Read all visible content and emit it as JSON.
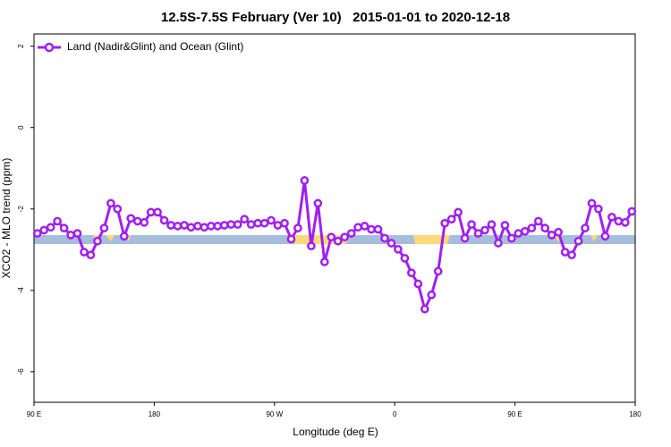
{
  "chart_data": {
    "type": "line",
    "title": "12.5S-7.5S February (Ver 10)   2015-01-01 to 2020-12-18",
    "x_label": "Longitude (deg E)",
    "y_label": "XCO2 - MLO trend (ppm)",
    "xlim": [
      90,
      540
    ],
    "ylim": [
      -6.75,
      2.3
    ],
    "xticks": [
      {
        "value": 90,
        "label": "90 E"
      },
      {
        "value": 180,
        "label": "180"
      },
      {
        "value": 270,
        "label": "90 W"
      },
      {
        "value": 360,
        "label": "0"
      },
      {
        "value": 450,
        "label": "90 E"
      },
      {
        "value": 540,
        "label": "180"
      }
    ],
    "yticks": [
      2,
      0,
      -2,
      -4,
      -6
    ],
    "legend_position": "top-left",
    "x": [
      92.5,
      97.5,
      102.5,
      107.5,
      112.5,
      117.5,
      122.5,
      127.5,
      132.5,
      137.5,
      142.5,
      147.5,
      152.5,
      157.5,
      162.5,
      167.5,
      172.5,
      177.5,
      182.5,
      187.5,
      192.5,
      197.5,
      202.5,
      207.5,
      212.5,
      217.5,
      222.5,
      227.5,
      232.5,
      237.5,
      242.5,
      247.5,
      252.5,
      257.5,
      262.5,
      267.5,
      272.5,
      277.5,
      282.5,
      287.5,
      292.5,
      297.5,
      302.5,
      307.5,
      312.5,
      317.5,
      322.5,
      327.5,
      332.5,
      337.5,
      342.5,
      347.5,
      352.5,
      357.5,
      362.5,
      367.5,
      372.5,
      377.5,
      382.5,
      387.5,
      392.5,
      397.5,
      402.5,
      407.5,
      412.5,
      417.5,
      422.5,
      427.5,
      432.5,
      437.5,
      442.5,
      447.5,
      452.5,
      457.5,
      462.5,
      467.5,
      472.5,
      477.5,
      482.5,
      487.5,
      492.5,
      497.5,
      502.5,
      507.5,
      512.5,
      517.5,
      522.5,
      527.5,
      532.5,
      537.5
    ],
    "series": [
      {
        "name": "Land (Nadir&Glint) and Ocean (Glint)",
        "color": "#a020f0",
        "values": [
          -2.6,
          -2.52,
          -2.45,
          -2.3,
          -2.47,
          -2.64,
          -2.6,
          -3.06,
          -3.13,
          -2.79,
          -2.47,
          -1.86,
          -2.0,
          -2.67,
          -2.23,
          -2.3,
          -2.33,
          -2.08,
          -2.08,
          -2.28,
          -2.4,
          -2.42,
          -2.4,
          -2.45,
          -2.42,
          -2.45,
          -2.42,
          -2.42,
          -2.4,
          -2.38,
          -2.38,
          -2.25,
          -2.38,
          -2.35,
          -2.35,
          -2.28,
          -2.4,
          -2.35,
          -2.74,
          -2.47,
          -1.3,
          -2.91,
          -1.86,
          -3.3,
          -2.69,
          -2.79,
          -2.69,
          -2.6,
          -2.45,
          -2.42,
          -2.5,
          -2.5,
          -2.72,
          -2.84,
          -2.99,
          -3.21,
          -3.57,
          -3.84,
          -4.46,
          -4.11,
          -3.53,
          -2.35,
          -2.25,
          -2.08,
          -2.72,
          -2.38,
          -2.6,
          -2.52,
          -2.38,
          -2.84,
          -2.4,
          -2.72,
          -2.6,
          -2.55,
          -2.47,
          -2.3,
          -2.47,
          -2.64,
          -2.57,
          -3.06,
          -3.13,
          -2.79,
          -2.47,
          -1.86,
          -2.0,
          -2.67,
          -2.2,
          -2.3,
          -2.33,
          -2.06
        ]
      }
    ]
  }
}
